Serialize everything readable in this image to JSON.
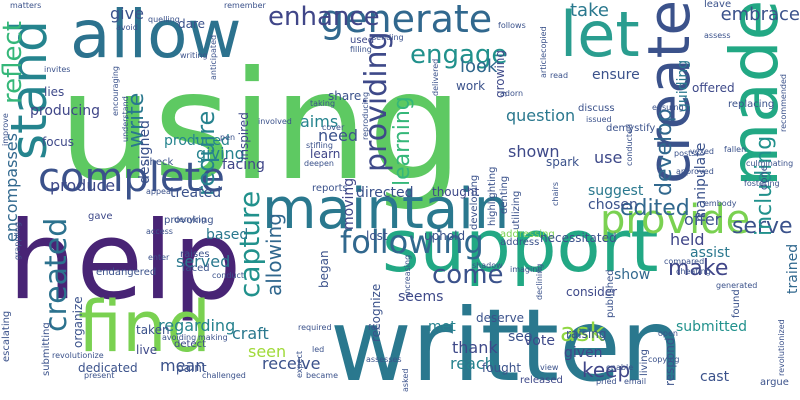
{
  "words": [
    {
      "text": "using",
      "color": "#5ec962",
      "rotate": false
    },
    {
      "text": "help",
      "color": "#482475",
      "rotate": false
    },
    {
      "text": "written",
      "color": "#2a788e",
      "rotate": false
    },
    {
      "text": "support",
      "color": "#22a884",
      "rotate": false
    },
    {
      "text": "allow",
      "color": "#2c728e",
      "rotate": false
    },
    {
      "text": "maintain",
      "color": "#2a788e",
      "rotate": false
    },
    {
      "text": "find",
      "color": "#7ad151",
      "rotate": false
    },
    {
      "text": "let",
      "color": "#2a9d8f",
      "rotate": false
    },
    {
      "text": "made",
      "color": "#22a884",
      "rotate": true
    },
    {
      "text": "create",
      "color": "#3b528b",
      "rotate": true
    },
    {
      "text": "stand",
      "color": "#25848e",
      "rotate": true
    },
    {
      "text": "complete",
      "color": "#3b528b",
      "rotate": false
    },
    {
      "text": "generate",
      "color": "#31688e",
      "rotate": false
    },
    {
      "text": "provide",
      "color": "#7ad151",
      "rotate": false
    },
    {
      "text": "enhance",
      "color": "#404688",
      "rotate": false
    },
    {
      "text": "engage",
      "color": "#21918c",
      "rotate": false
    },
    {
      "text": "following",
      "color": "#31688e",
      "rotate": false
    },
    {
      "text": "created",
      "color": "#2c728e",
      "rotate": true
    },
    {
      "text": "providing",
      "color": "#3e4989",
      "rotate": true
    },
    {
      "text": "capture",
      "color": "#21918c",
      "rotate": true
    },
    {
      "text": "reflect",
      "color": "#35b779",
      "rotate": true
    },
    {
      "text": "require",
      "color": "#26828e",
      "rotate": true
    },
    {
      "text": "write",
      "color": "#2a788e",
      "rotate": true
    },
    {
      "text": "come",
      "color": "#3b528b",
      "rotate": false
    },
    {
      "text": "edited",
      "color": "#31688e",
      "rotate": false
    },
    {
      "text": "ask",
      "color": "#90d743",
      "rotate": false
    },
    {
      "text": "make",
      "color": "#404688",
      "rotate": false
    },
    {
      "text": "serve",
      "color": "#3b528b",
      "rotate": false
    },
    {
      "text": "develop",
      "color": "#31688e",
      "rotate": true
    },
    {
      "text": "including",
      "color": "#21918c",
      "rotate": true
    },
    {
      "text": "learning",
      "color": "#35b779",
      "rotate": true
    },
    {
      "text": "allowing",
      "color": "#31688e",
      "rotate": true
    },
    {
      "text": "encompasses",
      "color": "#31688e",
      "rotate": true
    },
    {
      "text": "keep",
      "color": "#404688",
      "rotate": false
    },
    {
      "text": "take",
      "color": "#2a788e",
      "rotate": false
    },
    {
      "text": "embrace",
      "color": "#3b528b",
      "rotate": false
    },
    {
      "text": "look",
      "color": "#31688e",
      "rotate": false
    },
    {
      "text": "aims",
      "color": "#25848e",
      "rotate": false
    },
    {
      "text": "need",
      "color": "#3b528b",
      "rotate": false
    },
    {
      "text": "giving",
      "color": "#26828e",
      "rotate": false
    },
    {
      "text": "produce",
      "color": "#3e4989",
      "rotate": false
    },
    {
      "text": "produced",
      "color": "#25848e",
      "rotate": false
    },
    {
      "text": "producing",
      "color": "#404688",
      "rotate": false
    },
    {
      "text": "served",
      "color": "#2a788e",
      "rotate": false
    },
    {
      "text": "seems",
      "color": "#3e4989",
      "rotate": false
    },
    {
      "text": "give",
      "color": "#3b528b",
      "rotate": false
    },
    {
      "text": "use",
      "color": "#3e4989",
      "rotate": false
    },
    {
      "text": "offer",
      "color": "#3b528b",
      "rotate": false
    },
    {
      "text": "held",
      "color": "#404688",
      "rotate": false
    },
    {
      "text": "assist",
      "color": "#2a788e",
      "rotate": false
    },
    {
      "text": "question",
      "color": "#2a788e",
      "rotate": false
    },
    {
      "text": "shown",
      "color": "#3e4989",
      "rotate": false
    },
    {
      "text": "regarding",
      "color": "#26828e",
      "rotate": false
    },
    {
      "text": "craft",
      "color": "#2a788e",
      "rotate": false
    },
    {
      "text": "seen",
      "color": "#a0da39",
      "rotate": false
    },
    {
      "text": "mean",
      "color": "#3b528b",
      "rotate": false
    },
    {
      "text": "receive",
      "color": "#3b528b",
      "rotate": false
    },
    {
      "text": "thank",
      "color": "#3e4989",
      "rotate": false
    },
    {
      "text": "reach",
      "color": "#26828e",
      "rotate": false
    },
    {
      "text": "see",
      "color": "#3b528b",
      "rotate": false
    },
    {
      "text": "given",
      "color": "#404688",
      "rotate": false
    },
    {
      "text": "vote",
      "color": "#3e4989",
      "rotate": false
    },
    {
      "text": "met",
      "color": "#26828e",
      "rotate": false
    },
    {
      "text": "cast",
      "color": "#3b528b",
      "rotate": false
    },
    {
      "text": "submitted",
      "color": "#21918c",
      "rotate": false
    },
    {
      "text": "trained",
      "color": "#31688e",
      "rotate": true
    },
    {
      "text": "show",
      "color": "#31688e",
      "rotate": false
    },
    {
      "text": "moving",
      "color": "#404688",
      "rotate": true
    },
    {
      "text": "suggest",
      "color": "#2a788e",
      "rotate": false
    },
    {
      "text": "chosen",
      "color": "#3b528b",
      "rotate": false
    },
    {
      "text": "ensure",
      "color": "#3b528b",
      "rotate": false
    },
    {
      "text": "guiding",
      "color": "#2a788e",
      "rotate": true
    },
    {
      "text": "manipulate",
      "color": "#3b528b",
      "rotate": true
    },
    {
      "text": "based",
      "color": "#2a788e",
      "rotate": false
    },
    {
      "text": "treated",
      "color": "#3b528b",
      "rotate": false
    },
    {
      "text": "facing",
      "color": "#404688",
      "rotate": false
    },
    {
      "text": "directed",
      "color": "#3b528b",
      "rotate": false
    },
    {
      "text": "thought",
      "color": "#3e4989",
      "rotate": false
    },
    {
      "text": "learn",
      "color": "#404688",
      "rotate": false
    },
    {
      "text": "spark",
      "color": "#3b528b",
      "rotate": false
    },
    {
      "text": "designed",
      "color": "#3b528b",
      "rotate": true
    },
    {
      "text": "inspired",
      "color": "#3e4989",
      "rotate": true
    },
    {
      "text": "offered",
      "color": "#3e4989",
      "rotate": false
    },
    {
      "text": "growing",
      "color": "#3e4989",
      "rotate": true
    },
    {
      "text": "dare",
      "color": "#3b528b",
      "rotate": false
    },
    {
      "text": "lies",
      "color": "#3e4989",
      "rotate": false
    },
    {
      "text": "work",
      "color": "#3b528b",
      "rotate": false
    },
    {
      "text": "share",
      "color": "#3b528b",
      "rotate": false
    },
    {
      "text": "used",
      "color": "#3e4989",
      "rotate": false
    },
    {
      "text": "leave",
      "color": "#3b528b",
      "rotate": false
    },
    {
      "text": "raising",
      "color": "#3b528b",
      "rotate": false
    },
    {
      "text": "focus",
      "color": "#3e4989",
      "rotate": false
    },
    {
      "text": "check",
      "color": "#3b528b",
      "rotate": false
    },
    {
      "text": "live",
      "color": "#3e4989",
      "rotate": false
    },
    {
      "text": "taken",
      "color": "#3b528b",
      "rotate": false
    },
    {
      "text": "paint",
      "color": "#3b528b",
      "rotate": false
    },
    {
      "text": "detect",
      "color": "#3e4989",
      "rotate": false
    },
    {
      "text": "dedicated",
      "color": "#3b528b",
      "rotate": false
    },
    {
      "text": "deserve",
      "color": "#3b528b",
      "rotate": false
    },
    {
      "text": "fought",
      "color": "#3b528b",
      "rotate": false
    },
    {
      "text": "address",
      "color": "#3b528b",
      "rotate": false
    },
    {
      "text": "addressing",
      "color": "#7ad151",
      "rotate": false
    },
    {
      "text": "consider",
      "color": "#3e4989",
      "rotate": false
    },
    {
      "text": "necessitated",
      "color": "#3b528b",
      "rotate": false
    },
    {
      "text": "uphold",
      "color": "#3b528b",
      "rotate": false
    },
    {
      "text": "lost",
      "color": "#3b528b",
      "rotate": false
    },
    {
      "text": "began",
      "color": "#3b528b",
      "rotate": true
    },
    {
      "text": "faced",
      "color": "#3b528b",
      "rotate": false
    },
    {
      "text": "raises",
      "color": "#3b528b",
      "rotate": false
    },
    {
      "text": "provoking",
      "color": "#3b528b",
      "rotate": false
    },
    {
      "text": "gave",
      "color": "#3e4989",
      "rotate": false
    },
    {
      "text": "endangered",
      "color": "#3b528b",
      "rotate": false
    },
    {
      "text": "organize",
      "color": "#3b528b",
      "rotate": true
    },
    {
      "text": "submitting",
      "color": "#3b528b",
      "rotate": true
    },
    {
      "text": "escalating",
      "color": "#3b528b",
      "rotate": true
    },
    {
      "text": "revolutionize",
      "color": "#3b528b",
      "rotate": false
    },
    {
      "text": "revolutionized",
      "color": "#3b528b",
      "rotate": true
    },
    {
      "text": "recommended",
      "color": "#3b528b",
      "rotate": true
    },
    {
      "text": "respond",
      "color": "#3b528b",
      "rotate": true
    },
    {
      "text": "argue",
      "color": "#3b528b",
      "rotate": false
    },
    {
      "text": "found",
      "color": "#3b528b",
      "rotate": true
    },
    {
      "text": "published",
      "color": "#3b528b",
      "rotate": true
    },
    {
      "text": "released",
      "color": "#3e4989",
      "rotate": false
    },
    {
      "text": "recognize",
      "color": "#3b528b",
      "rotate": true
    },
    {
      "text": "reports",
      "color": "#3b528b",
      "rotate": false
    },
    {
      "text": "imagine",
      "color": "#3b528b",
      "rotate": false
    },
    {
      "text": "matters",
      "color": "#3b528b",
      "rotate": false
    },
    {
      "text": "avoid",
      "color": "#3b528b",
      "rotate": false
    },
    {
      "text": "writing",
      "color": "#3b528b",
      "rotate": false
    },
    {
      "text": "remember",
      "color": "#3b528b",
      "rotate": false
    },
    {
      "text": "anticipated",
      "color": "#3b528b",
      "rotate": true
    },
    {
      "text": "demystify",
      "color": "#3b528b",
      "rotate": false
    },
    {
      "text": "assess",
      "color": "#3b528b",
      "rotate": false
    },
    {
      "text": "replacing",
      "color": "#3b528b",
      "rotate": false
    },
    {
      "text": "done",
      "color": "#3b528b",
      "rotate": true
    },
    {
      "text": "culminating",
      "color": "#3b528b",
      "rotate": false
    },
    {
      "text": "fostering",
      "color": "#3b528b",
      "rotate": false
    },
    {
      "text": "approved",
      "color": "#3b528b",
      "rotate": false
    },
    {
      "text": "understand",
      "color": "#3b528b",
      "rotate": true
    },
    {
      "text": "encouraging",
      "color": "#3b528b",
      "rotate": true
    },
    {
      "text": "grappling",
      "color": "#3b528b",
      "rotate": true
    },
    {
      "text": "improve",
      "color": "#3b528b",
      "rotate": true
    },
    {
      "text": "invites",
      "color": "#3b528b",
      "rotate": false
    },
    {
      "text": "deepen",
      "color": "#3b528b",
      "rotate": false
    },
    {
      "text": "highlighting",
      "color": "#3b528b",
      "rotate": true
    },
    {
      "text": "developing",
      "color": "#3b528b",
      "rotate": true
    },
    {
      "text": "utilizing",
      "color": "#3b528b",
      "rotate": true
    },
    {
      "text": "denting",
      "color": "#3b528b",
      "rotate": true
    },
    {
      "text": "discuss",
      "color": "#3b528b",
      "rotate": false
    },
    {
      "text": "issued",
      "color": "#3b528b",
      "rotate": false
    },
    {
      "text": "ensuing",
      "color": "#3b528b",
      "rotate": false
    },
    {
      "text": "chairs",
      "color": "#3b528b",
      "rotate": true
    },
    {
      "text": "conducted",
      "color": "#3b528b",
      "rotate": true
    },
    {
      "text": "adorn",
      "color": "#3b528b",
      "rotate": false
    },
    {
      "text": "cover",
      "color": "#3b528b",
      "rotate": false
    },
    {
      "text": "taking",
      "color": "#3b528b",
      "rotate": false
    },
    {
      "text": "involved",
      "color": "#3b528b",
      "rotate": false
    },
    {
      "text": "stifling",
      "color": "#3b528b",
      "rotate": false
    },
    {
      "text": "pen",
      "color": "#3b528b",
      "rotate": false
    },
    {
      "text": "reproducing",
      "color": "#3b528b",
      "rotate": true
    },
    {
      "text": "articlecopied",
      "color": "#3b528b",
      "rotate": true
    },
    {
      "text": "delivered",
      "color": "#3b528b",
      "rotate": true
    },
    {
      "text": "follows",
      "color": "#3b528b",
      "rotate": false
    },
    {
      "text": "quelling",
      "color": "#3b528b",
      "rotate": false
    },
    {
      "text": "sending",
      "color": "#3b528b",
      "rotate": false
    },
    {
      "text": "filling",
      "color": "#3b528b",
      "rotate": false
    },
    {
      "text": "read",
      "color": "#3b528b",
      "rotate": false
    },
    {
      "text": "appear",
      "color": "#3b528b",
      "rotate": false
    },
    {
      "text": "denying",
      "color": "#3b528b",
      "rotate": false
    },
    {
      "text": "access",
      "color": "#3b528b",
      "rotate": false
    },
    {
      "text": "enter",
      "color": "#3b528b",
      "rotate": false
    },
    {
      "text": "conduct",
      "color": "#3b528b",
      "rotate": false
    },
    {
      "text": "avoiding",
      "color": "#3b528b",
      "rotate": false
    },
    {
      "text": "making",
      "color": "#3b528b",
      "rotate": false
    },
    {
      "text": "challenged",
      "color": "#3b528b",
      "rotate": false
    },
    {
      "text": "became",
      "color": "#3b528b",
      "rotate": false
    },
    {
      "text": "led",
      "color": "#3b528b",
      "rotate": false
    },
    {
      "text": "required",
      "color": "#3b528b",
      "rotate": false
    },
    {
      "text": "increasing",
      "color": "#3b528b",
      "rotate": true
    },
    {
      "text": "shadow",
      "color": "#3b528b",
      "rotate": false
    },
    {
      "text": "fell",
      "color": "#3b528b",
      "rotate": false
    },
    {
      "text": "expect",
      "color": "#3b528b",
      "rotate": true
    },
    {
      "text": "assesses",
      "color": "#3b528b",
      "rotate": false
    },
    {
      "text": "asked",
      "color": "#3b528b",
      "rotate": true
    },
    {
      "text": "view",
      "color": "#3b528b",
      "rotate": false
    },
    {
      "text": "declining",
      "color": "#3b528b",
      "rotate": true
    },
    {
      "text": "enable",
      "color": "#3b528b",
      "rotate": false
    },
    {
      "text": "pried",
      "color": "#3b528b",
      "rotate": false
    },
    {
      "text": "email",
      "color": "#3b528b",
      "rotate": false
    },
    {
      "text": "copying",
      "color": "#3b528b",
      "rotate": false
    },
    {
      "text": "open",
      "color": "#3b528b",
      "rotate": false
    },
    {
      "text": "generated",
      "color": "#3b528b",
      "rotate": false
    },
    {
      "text": "compared",
      "color": "#3b528b",
      "rotate": false
    },
    {
      "text": "cheating",
      "color": "#3b528b",
      "rotate": false
    },
    {
      "text": "living",
      "color": "#3b528b",
      "rotate": true
    },
    {
      "text": "present",
      "color": "#3b528b",
      "rotate": false
    },
    {
      "text": "vexed",
      "color": "#3b528b",
      "rotate": false
    },
    {
      "text": "fallen",
      "color": "#3b528b",
      "rotate": false
    },
    {
      "text": "embody",
      "color": "#3b528b",
      "rotate": false
    },
    {
      "text": "posts",
      "color": "#3b528b",
      "rotate": false
    }
  ]
}
